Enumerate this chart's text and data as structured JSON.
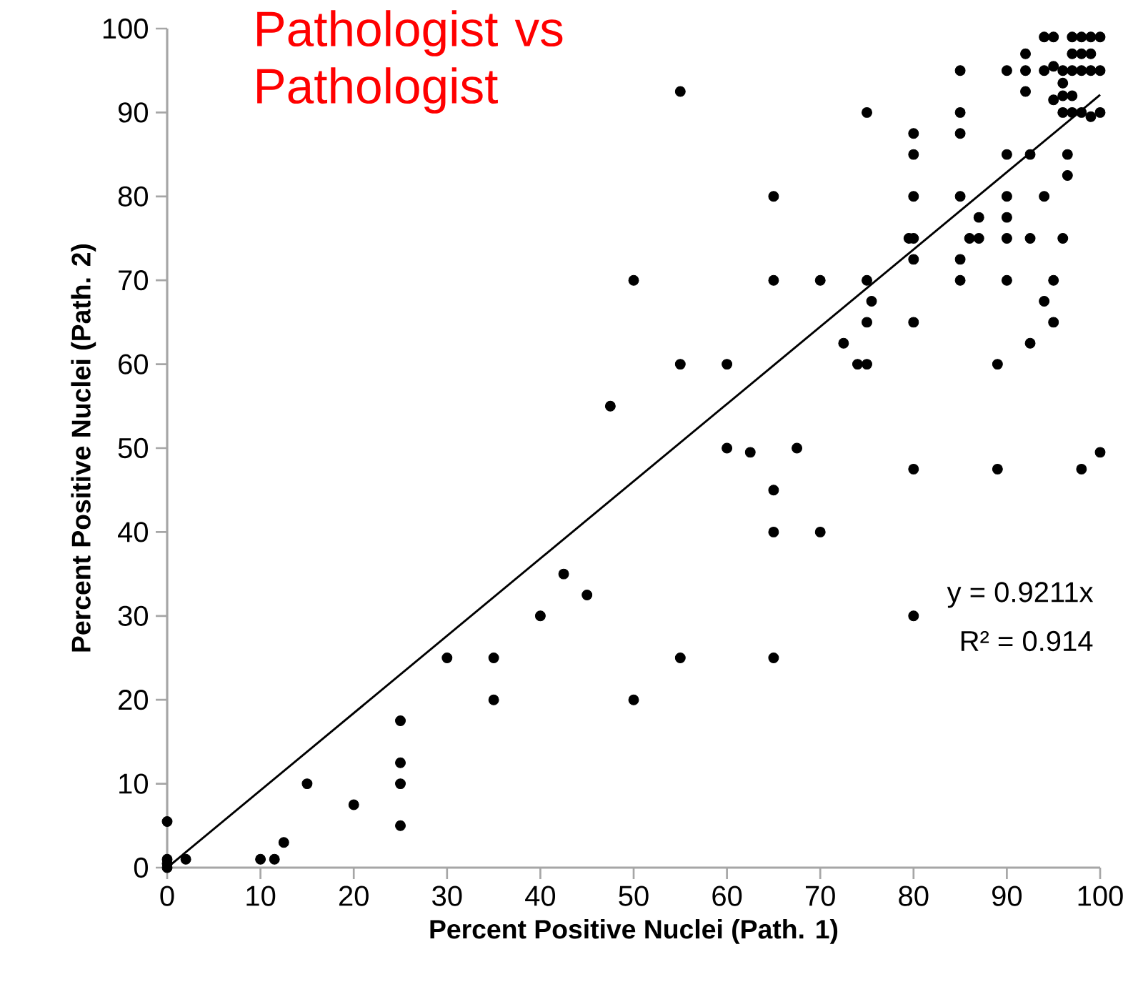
{
  "chart_data": {
    "type": "scatter",
    "title": "Pathologist vs Pathologist",
    "xlabel": "Percent Positive Nuclei (Path. 1)",
    "ylabel": "Percent Positive Nuclei (Path. 2)",
    "xlim": [
      0,
      100
    ],
    "ylim": [
      0,
      100
    ],
    "xticks": [
      0,
      10,
      20,
      30,
      40,
      50,
      60,
      70,
      80,
      90,
      100
    ],
    "yticks": [
      0,
      10,
      20,
      30,
      40,
      50,
      60,
      70,
      80,
      90,
      100
    ],
    "annotations": [
      "y = 0.9211x",
      "R² = 0.914"
    ],
    "series": [
      {
        "color": "#000000",
        "marker": "circle",
        "x": [
          0,
          0,
          0,
          0,
          2,
          10,
          11.5,
          12.5,
          15,
          20,
          25,
          25,
          25,
          25,
          30,
          35,
          35,
          40,
          42.5,
          45,
          47.5,
          50,
          50,
          55,
          55,
          55,
          60,
          60,
          62.5,
          65,
          65,
          65,
          65,
          65,
          67.5,
          70,
          70,
          72.5,
          74,
          75,
          75,
          75,
          75.5,
          75,
          80,
          80,
          80,
          79.5,
          80,
          80,
          80,
          80,
          80,
          85,
          85,
          85,
          85,
          85,
          85,
          86,
          87,
          87,
          89,
          89,
          90,
          90,
          90,
          90,
          90,
          90,
          92,
          92,
          92,
          92.5,
          92.5,
          92.5,
          94,
          94,
          94,
          94,
          95,
          95,
          95,
          95,
          95,
          96,
          96.5,
          96.5,
          96,
          96,
          97,
          96,
          97,
          98,
          99,
          100,
          97,
          98,
          99,
          97,
          98,
          99,
          100,
          96,
          97,
          98,
          99,
          100,
          98,
          100
        ],
        "values": [
          0,
          0.5,
          1,
          5.5,
          1,
          1,
          1,
          3,
          10,
          7.5,
          5,
          10,
          12.5,
          17.5,
          25,
          20,
          25,
          30,
          35,
          32.5,
          55,
          70,
          20,
          92.5,
          60,
          25,
          60,
          50,
          49.5,
          80,
          70,
          45,
          40,
          25,
          50,
          70,
          40,
          62.5,
          60,
          60,
          70,
          65,
          67.5,
          90,
          87.5,
          85,
          80,
          75,
          75,
          72.5,
          65,
          47.5,
          30,
          95,
          90,
          87.5,
          80,
          72.5,
          70,
          75,
          77.5,
          75,
          47.5,
          60,
          95,
          85,
          80,
          77.5,
          75,
          70,
          97,
          95,
          92.5,
          85,
          75,
          62.5,
          80,
          67.5,
          99,
          95,
          99,
          95.5,
          65,
          70,
          91.5,
          75,
          85,
          82.5,
          92,
          93.5,
          92,
          95,
          95,
          95,
          95,
          95,
          97,
          97,
          97,
          99,
          99,
          99,
          99,
          90,
          90,
          90,
          89.5,
          90,
          47.5,
          49.5
        ]
      },
      {
        "type": "line",
        "color": "#000000",
        "marker": "none",
        "x": [
          0,
          100
        ],
        "values": [
          0,
          92.1
        ]
      }
    ]
  }
}
